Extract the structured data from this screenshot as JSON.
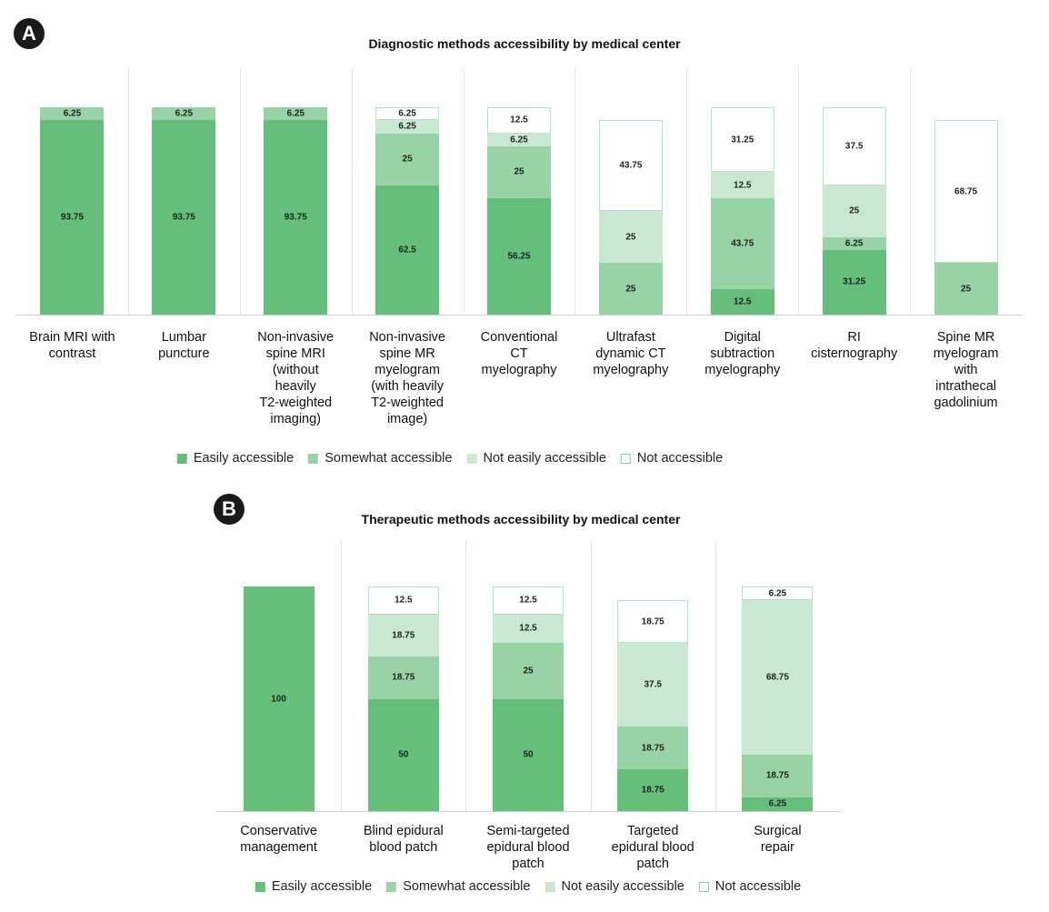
{
  "chart_data": [
    {
      "type": "stacked_bar",
      "label": "A",
      "title": "Diagnostic methods accessibility by medical center",
      "categories": [
        "Brain MRI with\ncontrast",
        "Lumbar\npuncture",
        "Non-invasive\nspine MRI\n(without\nheavily\nT2-weighted\nimaging)",
        "Non-invasive\nspine MR\nmyelogram\n(with heavily\nT2-weighted\nimage)",
        "Conventional\nCT\nmyelography",
        "Ultrafast\ndynamic CT\nmyelography",
        "Digital\nsubtraction\nmyelography",
        "RI\ncisternography",
        "Spine MR\nmyelogram\nwith\nintrathecal\ngadolinium"
      ],
      "ylim": [
        0,
        100
      ],
      "series": [
        {
          "name": "Easily accessible",
          "color": "#63bf7a",
          "values": [
            93.75,
            93.75,
            93.75,
            62.5,
            56.25,
            null,
            12.5,
            31.25,
            null
          ]
        },
        {
          "name": "Somewhat accessible",
          "color": "#98d3a5",
          "values": [
            6.25,
            6.25,
            6.25,
            25,
            25,
            25,
            43.75,
            6.25,
            25
          ]
        },
        {
          "name": "Not easily accessible",
          "color": "#c9e8d2",
          "values": [
            null,
            null,
            null,
            6.25,
            6.25,
            25,
            12.5,
            25,
            null
          ]
        },
        {
          "name": "Not accessible",
          "color": "#ffffff",
          "values": [
            null,
            null,
            null,
            6.25,
            12.5,
            43.75,
            31.25,
            37.5,
            68.75
          ]
        }
      ]
    },
    {
      "type": "stacked_bar",
      "label": "B",
      "title": "Therapeutic methods accessibility by medical center",
      "categories": [
        "Conservative\nmanagement",
        "Blind epidural\nblood patch",
        "Semi-targeted\nepidural blood\npatch",
        "Targeted\nepidural blood\npatch",
        "Surgical\nrepair"
      ],
      "ylim": [
        0,
        100
      ],
      "series": [
        {
          "name": "Easily accessible",
          "color": "#63bf7a",
          "values": [
            100,
            50,
            50,
            18.75,
            6.25
          ]
        },
        {
          "name": "Somewhat accessible",
          "color": "#98d3a5",
          "values": [
            null,
            18.75,
            25,
            18.75,
            18.75
          ]
        },
        {
          "name": "Not easily accessible",
          "color": "#c9e8d2",
          "values": [
            null,
            18.75,
            12.5,
            37.5,
            68.75
          ]
        },
        {
          "name": "Not accessible",
          "color": "#ffffff",
          "values": [
            null,
            12.5,
            12.5,
            18.75,
            6.25
          ]
        }
      ]
    }
  ]
}
